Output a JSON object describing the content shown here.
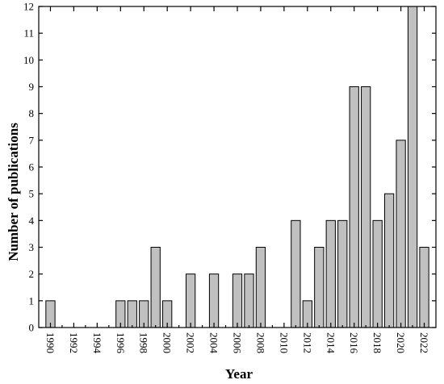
{
  "chart_data": {
    "type": "bar",
    "title": "",
    "xlabel": "Year",
    "ylabel": "Number of publications",
    "ylim": [
      0,
      12
    ],
    "xlim": [
      1989,
      2023
    ],
    "yticks": [
      0,
      1,
      2,
      3,
      4,
      5,
      6,
      7,
      8,
      9,
      10,
      11,
      12
    ],
    "xticks": [
      1990,
      1992,
      1994,
      1996,
      1998,
      2000,
      2002,
      2004,
      2006,
      2008,
      2010,
      2012,
      2014,
      2016,
      2018,
      2020,
      2022
    ],
    "grid": false,
    "bar_color": "#c0c0c0",
    "categories": [
      1990,
      1991,
      1992,
      1993,
      1994,
      1995,
      1996,
      1997,
      1998,
      1999,
      2000,
      2001,
      2002,
      2003,
      2004,
      2005,
      2006,
      2007,
      2008,
      2009,
      2010,
      2011,
      2012,
      2013,
      2014,
      2015,
      2016,
      2017,
      2018,
      2019,
      2020,
      2021,
      2022
    ],
    "values": [
      1,
      0,
      0,
      0,
      0,
      0,
      1,
      1,
      1,
      3,
      1,
      0,
      2,
      0,
      2,
      0,
      2,
      2,
      3,
      0,
      0,
      4,
      1,
      3,
      4,
      4,
      9,
      9,
      4,
      5,
      7,
      12,
      3
    ]
  }
}
